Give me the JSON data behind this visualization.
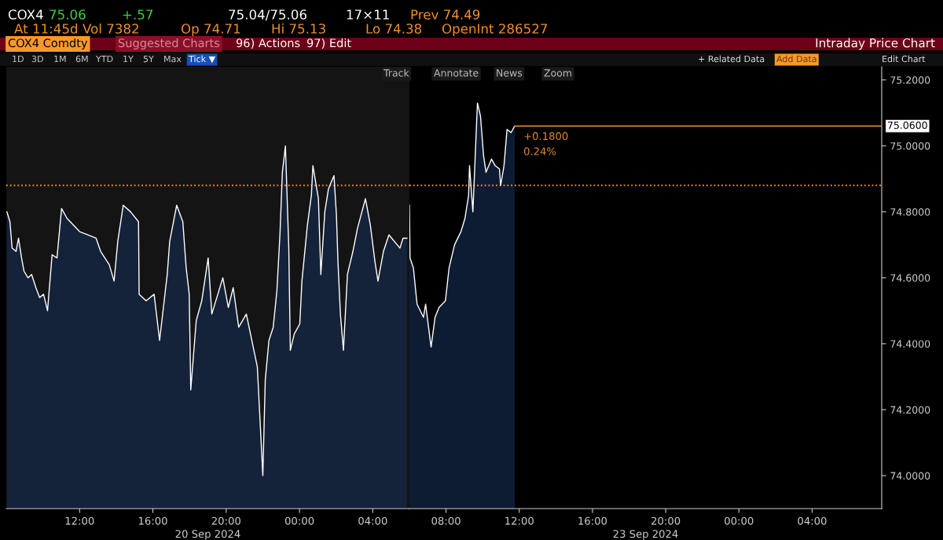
{
  "chart_data": [
    {
      "type": "area",
      "x": [
        "2024-09-20T08:02",
        "2024-09-20T08:12",
        "2024-09-20T08:19",
        "2024-09-20T08:32",
        "2024-09-20T08:40",
        "2024-09-20T08:50",
        "2024-09-20T08:58",
        "2024-09-20T09:11",
        "2024-09-20T09:23",
        "2024-09-20T09:37",
        "2024-09-20T09:49",
        "2024-09-20T10:02",
        "2024-09-20T10:15",
        "2024-09-20T10:30",
        "2024-09-20T10:46",
        "2024-09-20T11:01",
        "2024-09-20T11:19",
        "2024-09-20T12:00",
        "2024-09-20T12:54",
        "2024-09-20T13:09",
        "2024-09-20T13:37",
        "2024-09-20T13:53",
        "2024-09-20T14:05",
        "2024-09-20T14:23",
        "2024-09-20T14:47",
        "2024-09-20T15:13",
        "2024-09-20T15:15",
        "2024-09-20T15:38",
        "2024-09-20T16:04",
        "2024-09-20T16:22",
        "2024-09-20T16:47",
        "2024-09-20T16:55",
        "2024-09-20T17:18",
        "2024-09-20T17:38",
        "2024-09-20T17:49",
        "2024-09-20T17:59",
        "2024-09-20T18:04",
        "2024-09-20T18:22",
        "2024-09-20T18:40",
        "2024-09-20T19:01",
        "2024-09-20T19:13",
        "2024-09-20T19:49",
        "2024-09-20T20:07",
        "2024-09-20T20:23",
        "2024-09-20T20:41",
        "2024-09-20T21:06",
        "2024-09-20T21:24",
        "2024-09-20T21:42",
        "2024-09-20T22:00",
        "2024-09-20T22:08",
        "2024-09-20T22:20",
        "2024-09-20T22:34",
        "2024-09-20T22:46",
        "2024-09-20T22:56",
        "2024-09-20T23:04",
        "2024-09-20T23:14",
        "2024-09-20T23:25",
        "2024-09-20T23:30",
        "2024-09-20T23:43",
        "2024-09-21T00:01",
        "2024-09-21T00:08",
        "2024-09-21T00:26",
        "2024-09-21T00:39",
        "2024-09-21T00:44",
        "2024-09-21T01:02",
        "2024-09-21T01:10",
        "2024-09-21T01:23",
        "2024-09-21T01:35",
        "2024-09-21T01:53",
        "2024-09-21T02:01",
        "2024-09-21T02:06",
        "2024-09-21T02:14",
        "2024-09-21T02:24",
        "2024-09-21T02:37",
        "2024-09-21T02:55",
        "2024-09-21T03:10",
        "2024-09-21T03:36",
        "2024-09-21T03:52",
        "2024-09-21T04:07",
        "2024-09-21T04:17",
        "2024-09-21T04:35",
        "2024-09-21T04:53",
        "2024-09-21T05:29",
        "2024-09-21T05:39",
        "2024-09-21T05:52"
      ],
      "series": [
        {
          "color": "#14223a",
          "values": [
            74.8,
            74.77,
            74.69,
            74.68,
            74.72,
            74.66,
            74.62,
            74.6,
            74.61,
            74.57,
            74.54,
            74.55,
            74.5,
            74.67,
            74.66,
            74.81,
            74.78,
            74.74,
            74.72,
            74.68,
            74.64,
            74.59,
            74.71,
            74.82,
            74.8,
            74.77,
            74.55,
            74.53,
            74.55,
            74.41,
            74.61,
            74.71,
            74.82,
            74.77,
            74.63,
            74.55,
            74.26,
            74.47,
            74.53,
            74.66,
            74.49,
            74.6,
            74.51,
            74.57,
            74.45,
            74.49,
            74.41,
            74.33,
            74.0,
            74.29,
            74.41,
            74.45,
            74.56,
            74.73,
            74.92,
            75.0,
            74.69,
            74.38,
            74.43,
            74.46,
            74.59,
            74.76,
            74.85,
            74.94,
            74.84,
            74.61,
            74.8,
            74.87,
            74.91,
            74.79,
            74.65,
            74.49,
            74.38,
            74.61,
            74.68,
            74.75,
            74.84,
            74.76,
            74.65,
            74.59,
            74.68,
            74.73,
            74.69,
            74.72,
            74.72
          ]
        }
      ],
      "xlim": [
        "2024-09-20T08:00",
        "2024-09-21T06:00"
      ],
      "xticks": [
        {
          "value": "2024-09-20T12:00",
          "label": "12:00"
        },
        {
          "value": "2024-09-20T16:00",
          "label": "16:00"
        },
        {
          "value": "2024-09-20T20:00",
          "label": "20:00"
        },
        {
          "value": "2024-09-21T00:00",
          "label": "00:00"
        },
        {
          "value": "2024-09-21T04:00",
          "label": "04:00"
        }
      ],
      "ylim": [
        73.9,
        75.24
      ],
      "tick_labels": "x",
      "ref_lines": [
        {
          "axis": "y",
          "value": 74.88,
          "color": "#f0902a",
          "line_style": "dotted"
        }
      ],
      "bands": [
        {
          "axis": "x",
          "from": "2024-09-20T08:00",
          "to": "2024-09-21T06:00",
          "color": "#141414"
        }
      ],
      "grid": false,
      "legend": false,
      "annotations": [
        "COX4",
        "75.06",
        "+.57",
        "75.04/75.06",
        "17×11",
        "Prev 74.49",
        "At 11:45d",
        "Vol 7382",
        "Op 74.71",
        "Hi 75.13",
        "Lo 74.38",
        "OpenInt 286527",
        "COX4 Comdty",
        "Suggested Charts",
        "96) Actions",
        "97) Edit",
        "1D",
        "3D",
        "1M",
        "6M",
        "YTD",
        "1Y",
        "5Y",
        "Max",
        "Tick ▼",
        "+ Related Data",
        "Add Data",
        "Edit Chart",
        "Track",
        "Annotate",
        "News",
        "Zoom",
        "20 Sep 2024"
      ]
    },
    {
      "type": "area",
      "title": "Intraday Price Chart",
      "x": [
        "2024-09-23T06:00",
        "2024-09-23T06:02",
        "2024-09-23T06:13",
        "2024-09-23T06:25",
        "2024-09-23T06:46",
        "2024-09-23T06:53",
        "2024-09-23T07:11",
        "2024-09-23T07:24",
        "2024-09-23T07:37",
        "2024-09-23T07:58",
        "2024-09-23T08:10",
        "2024-09-23T08:28",
        "2024-09-23T08:49",
        "2024-09-23T09:02",
        "2024-09-23T09:14",
        "2024-09-23T09:17",
        "2024-09-23T09:28",
        "2024-09-23T09:38",
        "2024-09-23T09:43",
        "2024-09-23T09:53",
        "2024-09-23T10:03",
        "2024-09-23T10:11",
        "2024-09-23T10:29",
        "2024-09-23T10:41",
        "2024-09-23T10:55",
        "2024-09-23T10:59",
        "2024-09-23T11:10",
        "2024-09-23T11:20",
        "2024-09-23T11:33",
        "2024-09-23T11:45"
      ],
      "series": [
        {
          "color": "#0d1c33",
          "values": [
            74.82,
            74.66,
            74.63,
            74.52,
            74.48,
            74.52,
            74.39,
            74.48,
            74.51,
            74.53,
            74.63,
            74.7,
            74.74,
            74.78,
            74.85,
            74.94,
            74.8,
            75.02,
            75.13,
            75.09,
            74.97,
            74.92,
            74.96,
            74.94,
            74.93,
            74.88,
            74.94,
            75.05,
            75.04,
            75.06
          ]
        }
      ],
      "xlim": [
        "2024-09-23T06:00",
        "2024-09-24T07:48"
      ],
      "xticks": [
        {
          "value": "2024-09-23T08:00",
          "label": "08:00"
        },
        {
          "value": "2024-09-23T12:00",
          "label": "12:00"
        },
        {
          "value": "2024-09-23T16:00",
          "label": "16:00"
        },
        {
          "value": "2024-09-23T20:00",
          "label": "20:00"
        },
        {
          "value": "2024-09-24T00:00",
          "label": "00:00"
        },
        {
          "value": "2024-09-24T04:00",
          "label": "04:00"
        }
      ],
      "ylim": [
        73.9,
        75.24
      ],
      "yticks": [
        {
          "value": 74.0,
          "label": "74.0000"
        },
        {
          "value": 74.2,
          "label": "74.2000"
        },
        {
          "value": 74.4,
          "label": "74.4000"
        },
        {
          "value": 74.6,
          "label": "74.6000"
        },
        {
          "value": 74.8,
          "label": "74.8000"
        },
        {
          "value": 75.0,
          "label": "75.0000"
        },
        {
          "value": 75.2,
          "label": "75.2000"
        }
      ],
      "ref_lines": [
        {
          "axis": "y",
          "value": 74.88,
          "color": "#f0902a",
          "line_style": "dotted"
        },
        {
          "axis": "y",
          "value": 75.06,
          "label": "75.0600",
          "color": "#d9852a",
          "line_style": "solid"
        }
      ],
      "grid": false,
      "legend": false,
      "annotations": [
        {
          "text": "+0.1800",
          "x": "2024-09-23T11:45",
          "y": 75.06
        },
        {
          "text": "0.24%",
          "x": "2024-09-23T11:45",
          "y": 75.06
        },
        "23 Sep 2024"
      ]
    }
  ]
}
